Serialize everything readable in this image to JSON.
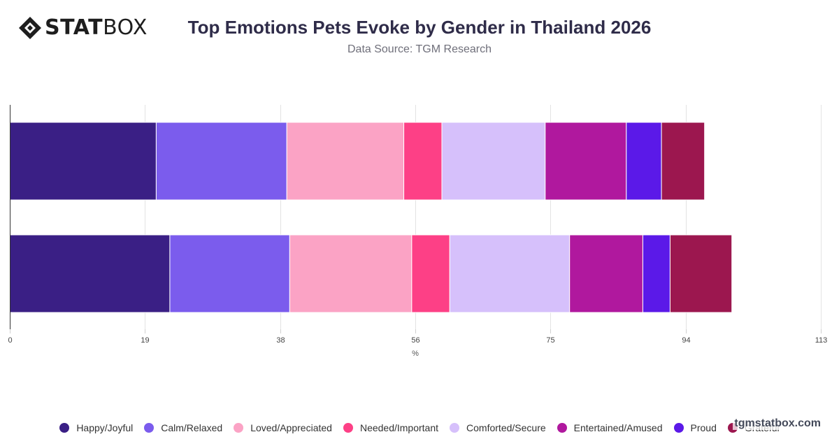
{
  "logo": {
    "bold": "STAT",
    "light": "BOX"
  },
  "header": {
    "title": "Top Emotions Pets Evoke by Gender in Thailand 2026",
    "subtitle": "Data Source: TGM Research"
  },
  "watermark": "tgmstatbox.com",
  "chart_data": {
    "type": "bar",
    "orientation": "horizontal",
    "stacked": true,
    "title": "Top Emotions Pets Evoke by Gender in Thailand 2026",
    "subtitle": "Data Source: TGM Research",
    "xlabel": "%",
    "ylabel": "",
    "xlim": [
      0,
      113
    ],
    "xticks": [
      "0",
      "19",
      "38",
      "56",
      "75",
      "94",
      "113"
    ],
    "xtick_values": [
      0,
      18.83,
      37.67,
      56.5,
      75.33,
      94.17,
      113
    ],
    "categories": [
      "",
      ""
    ],
    "grid": true,
    "legend_position": "bottom",
    "series": [
      {
        "name": "Happy/Joyful",
        "color": "#3a1f85",
        "values": [
          20.4,
          22.3
        ]
      },
      {
        "name": "Calm/Relaxed",
        "color": "#7b5ced",
        "values": [
          18.2,
          16.7
        ]
      },
      {
        "name": "Loved/Appreciated",
        "color": "#fba3c5",
        "values": [
          16.3,
          17.0
        ]
      },
      {
        "name": "Needed/Important",
        "color": "#fd4086",
        "values": [
          5.3,
          5.3
        ]
      },
      {
        "name": "Comforted/Secure",
        "color": "#d6c0fb",
        "values": [
          14.4,
          16.7
        ]
      },
      {
        "name": "Entertained/Amused",
        "color": "#b0189e",
        "values": [
          11.3,
          10.2
        ]
      },
      {
        "name": "Proud",
        "color": "#5b19e8",
        "values": [
          4.9,
          3.8
        ]
      },
      {
        "name": "Grateful",
        "color": "#9c174f",
        "values": [
          6.0,
          8.6
        ]
      }
    ]
  }
}
